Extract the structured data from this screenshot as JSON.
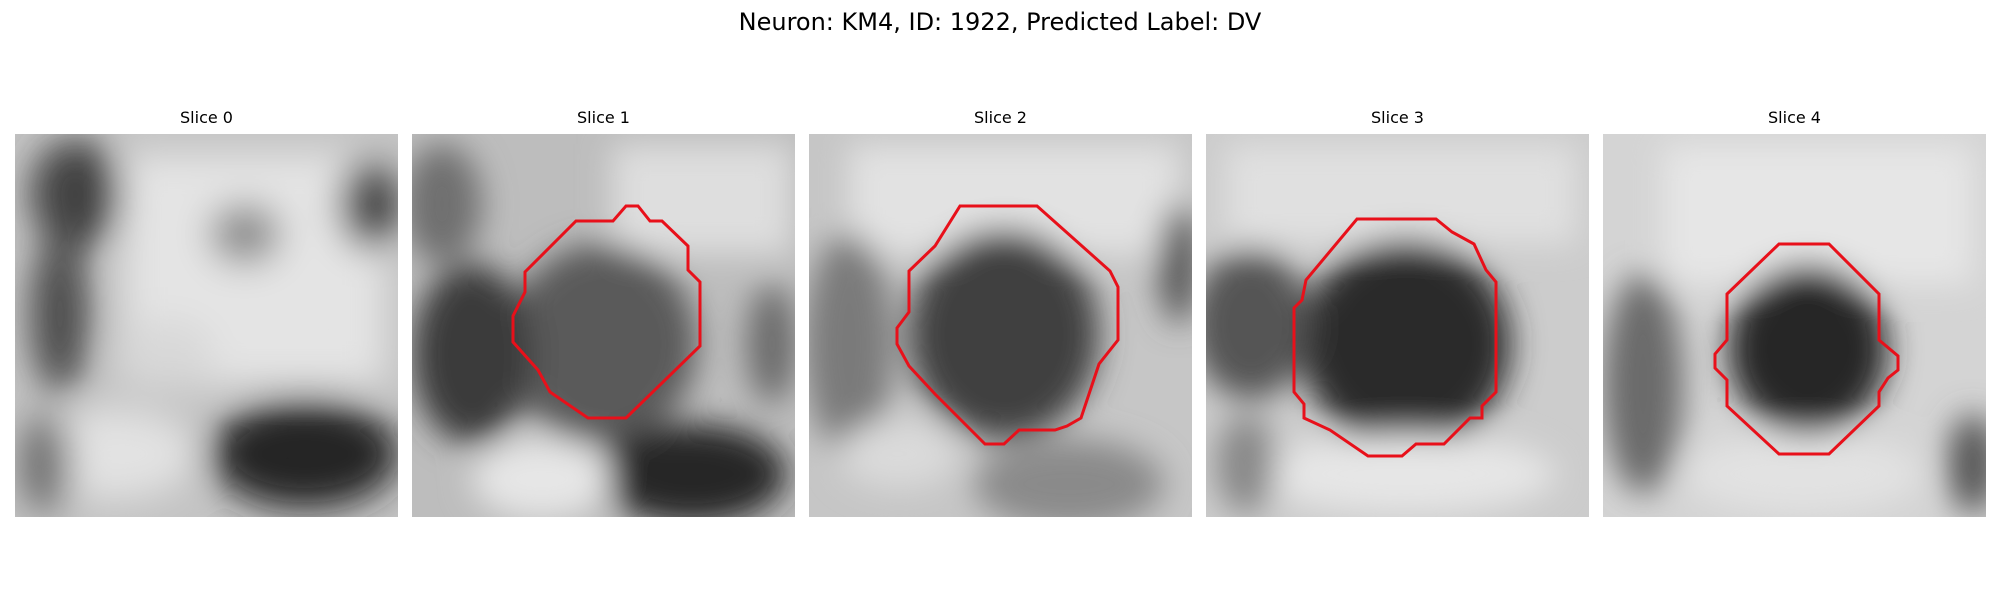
{
  "figure": {
    "title": "Neuron: KM4, ID: 1922, Predicted Label: DV"
  },
  "panels": [
    {
      "title": "Slice 0",
      "has_contour": false
    },
    {
      "title": "Slice 1",
      "has_contour": true
    },
    {
      "title": "Slice 2",
      "has_contour": true
    },
    {
      "title": "Slice 3",
      "has_contour": true
    },
    {
      "title": "Slice 4",
      "has_contour": true
    }
  ],
  "colors": {
    "contour": "#e8101a",
    "background": "#ffffff"
  }
}
